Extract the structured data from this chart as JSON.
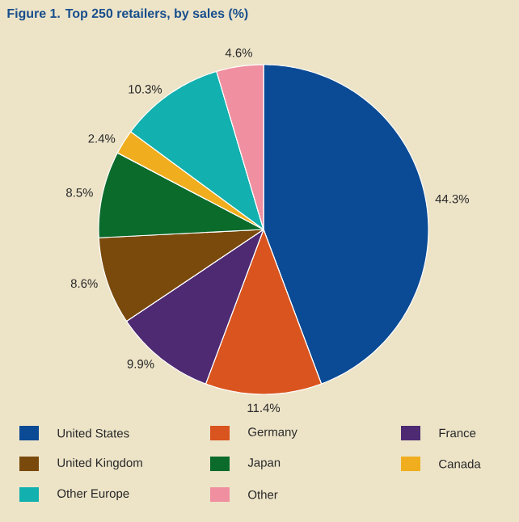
{
  "chart_data": {
    "type": "pie",
    "title": "Figure 1. Top 250 retailers, by sales (%)",
    "categories": [
      "United States",
      "Germany",
      "France",
      "United Kingdom",
      "Japan",
      "Canada",
      "Other Europe",
      "Other"
    ],
    "values": [
      44.3,
      11.4,
      9.9,
      8.6,
      8.5,
      2.4,
      10.3,
      4.6
    ],
    "colors": [
      "#0b4a94",
      "#d9541e",
      "#4e2a73",
      "#7a4a0c",
      "#0b6b2b",
      "#f0ae1e",
      "#12b0ae",
      "#f08fa0"
    ],
    "value_labels": [
      "44.3%",
      "11.4%",
      "9.9%",
      "8.6%",
      "8.5%",
      "2.4%",
      "10.3%",
      "4.6%"
    ],
    "legend": "bottom"
  }
}
